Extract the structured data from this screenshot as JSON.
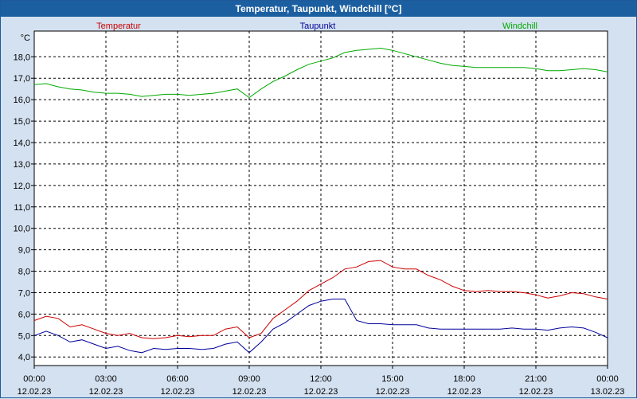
{
  "window": {
    "title": "Temperatur, Taupunkt, Windchill [°C]"
  },
  "chart_data": {
    "type": "line",
    "title": "Temperatur, Taupunkt, Windchill [°C]",
    "ylabel": "°C",
    "ylim": [
      3.6,
      19.2
    ],
    "yticks": [
      "4,0",
      "5,0",
      "6,0",
      "7,0",
      "8,0",
      "9,0",
      "10,0",
      "11,0",
      "12,0",
      "13,0",
      "14,0",
      "15,0",
      "16,0",
      "17,0",
      "18,0"
    ],
    "xlim": [
      0,
      24
    ],
    "xtick_times": [
      "00:00",
      "03:00",
      "06:00",
      "09:00",
      "12:00",
      "15:00",
      "18:00",
      "21:00",
      "00:00"
    ],
    "xtick_dates": [
      "12.02.23",
      "12.02.23",
      "12.02.23",
      "12.02.23",
      "12.02.23",
      "12.02.23",
      "12.02.23",
      "12.02.23",
      "13.02.23"
    ],
    "x_hours": [
      0,
      0.5,
      1,
      1.5,
      2,
      2.5,
      3,
      3.5,
      4,
      4.5,
      5,
      5.5,
      6,
      6.5,
      7,
      7.5,
      8,
      8.5,
      9,
      9.5,
      10,
      10.5,
      11,
      11.5,
      12,
      12.5,
      13,
      13.5,
      14,
      14.5,
      15,
      15.5,
      16,
      16.5,
      17,
      17.5,
      18,
      18.5,
      19,
      19.5,
      20,
      20.5,
      21,
      21.5,
      22,
      22.5,
      23,
      23.5,
      24
    ],
    "grid": true,
    "legend": "top",
    "series": [
      {
        "name": "Temperatur",
        "color": "#cc0000",
        "values": [
          5.7,
          5.9,
          5.8,
          5.4,
          5.5,
          5.3,
          5.1,
          5.0,
          5.1,
          4.9,
          4.85,
          4.9,
          5.0,
          4.95,
          5.0,
          5.0,
          5.3,
          5.4,
          4.9,
          5.1,
          5.8,
          6.2,
          6.6,
          7.1,
          7.4,
          7.7,
          8.1,
          8.2,
          8.45,
          8.5,
          8.2,
          8.1,
          8.1,
          7.8,
          7.6,
          7.3,
          7.1,
          7.05,
          7.1,
          7.05,
          7.05,
          7.0,
          6.9,
          6.75,
          6.85,
          7.0,
          6.95,
          6.8,
          6.7
        ]
      },
      {
        "name": "Taupunkt",
        "color": "#000099",
        "values": [
          5.0,
          5.2,
          5.0,
          4.7,
          4.8,
          4.6,
          4.4,
          4.5,
          4.3,
          4.2,
          4.4,
          4.35,
          4.4,
          4.4,
          4.35,
          4.4,
          4.6,
          4.7,
          4.2,
          4.7,
          5.3,
          5.6,
          6.0,
          6.4,
          6.6,
          6.7,
          6.7,
          5.7,
          5.55,
          5.55,
          5.5,
          5.5,
          5.5,
          5.35,
          5.3,
          5.3,
          5.3,
          5.3,
          5.3,
          5.3,
          5.35,
          5.3,
          5.3,
          5.25,
          5.35,
          5.4,
          5.35,
          5.15,
          4.9
        ]
      },
      {
        "name": "Windchill",
        "color": "#00aa00",
        "values": [
          16.7,
          16.75,
          16.6,
          16.5,
          16.45,
          16.35,
          16.3,
          16.3,
          16.25,
          16.15,
          16.2,
          16.25,
          16.25,
          16.2,
          16.25,
          16.3,
          16.4,
          16.5,
          16.1,
          16.5,
          16.85,
          17.1,
          17.4,
          17.65,
          17.8,
          17.95,
          18.2,
          18.3,
          18.35,
          18.4,
          18.3,
          18.15,
          18.0,
          17.85,
          17.7,
          17.6,
          17.55,
          17.5,
          17.5,
          17.5,
          17.5,
          17.5,
          17.45,
          17.35,
          17.35,
          17.4,
          17.45,
          17.4,
          17.3
        ]
      }
    ]
  }
}
